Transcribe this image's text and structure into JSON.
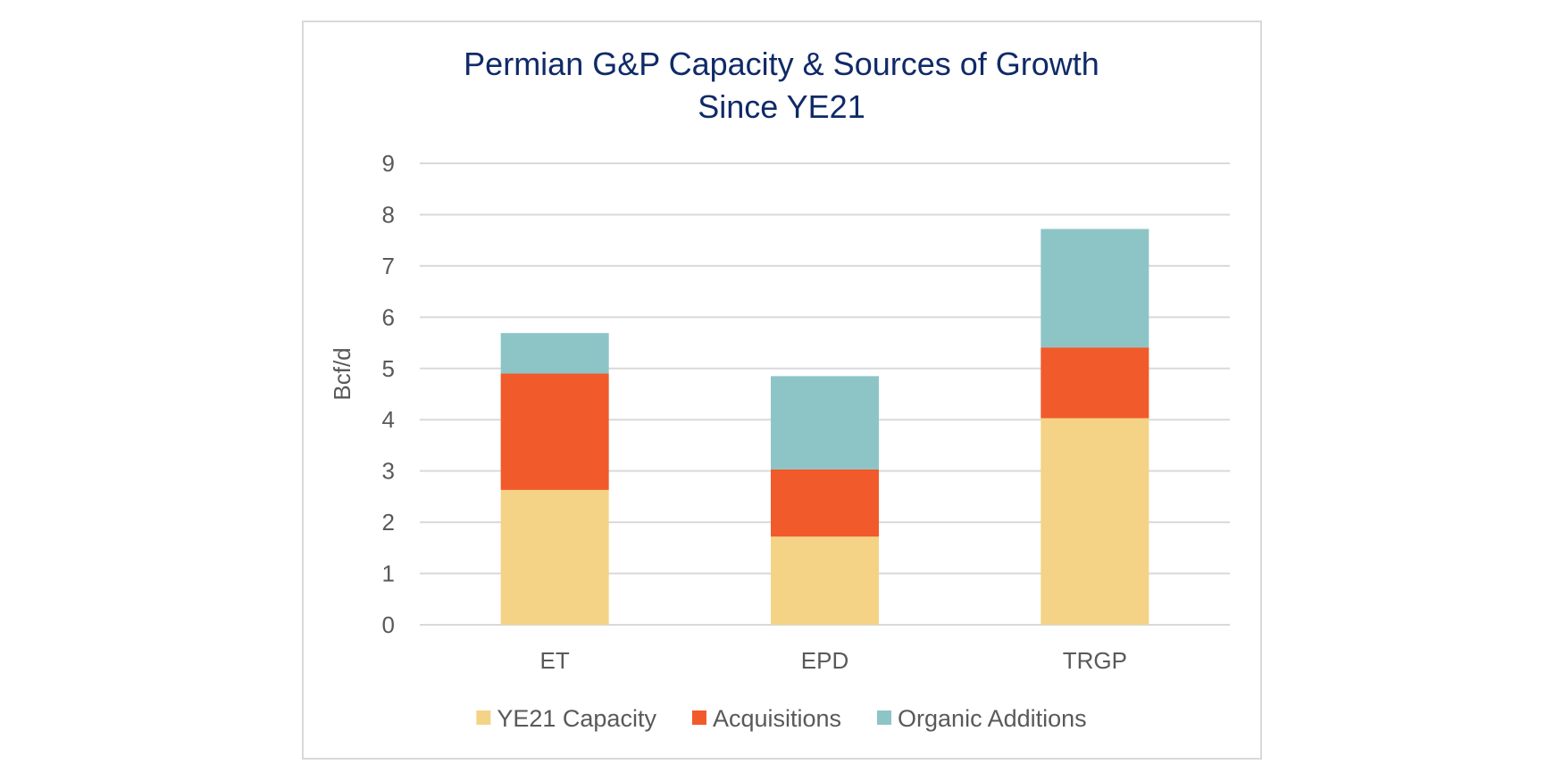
{
  "chart_data": {
    "type": "bar",
    "stacked": true,
    "title": "Permian G&P Capacity & Sources of Growth Since YE21",
    "title_lines": [
      "Permian G&P Capacity & Sources of Growth",
      "Since YE21"
    ],
    "xlabel": "",
    "ylabel": "Bcf/d",
    "ylim": [
      0,
      9
    ],
    "yticks": [
      "0",
      "1",
      "2",
      "3",
      "4",
      "5",
      "6",
      "7",
      "8",
      "9"
    ],
    "grid": true,
    "legend_position": "bottom",
    "categories": [
      "ET",
      "EPD",
      "TRGP"
    ],
    "series": [
      {
        "name": "YE21 Capacity",
        "color": "#f4d386",
        "values": [
          2.63,
          1.72,
          4.03
        ]
      },
      {
        "name": "Acquisitions",
        "color": "#f15a2b",
        "values": [
          2.27,
          1.31,
          1.38
        ]
      },
      {
        "name": "Organic Additions",
        "color": "#8dc5c7",
        "values": [
          0.79,
          1.82,
          2.31
        ]
      }
    ]
  }
}
